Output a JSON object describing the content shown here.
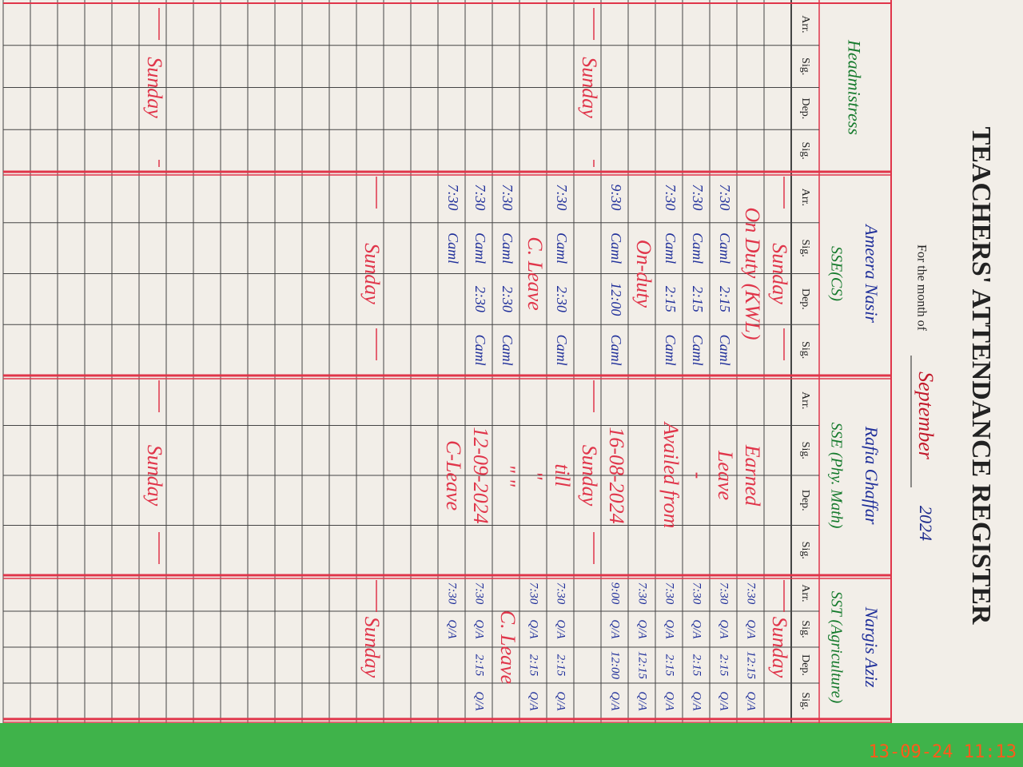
{
  "header": {
    "title": "TEACHERS' ATTENDANCE REGISTER",
    "month_label": "For the month of",
    "month": "September",
    "year": "2024"
  },
  "column_headers": [
    "Arr.",
    "Sig.",
    "Dep.",
    "Sig."
  ],
  "teachers": [
    {
      "name": "Headmistress"
    },
    {
      "name": "Ameera Nasir",
      "designation": "SSE(CS)"
    },
    {
      "name": "Rafia Ghaffar",
      "designation": "SSE (Phy. Math)"
    },
    {
      "name": "Nargis Aziz",
      "designation": "SST (Agriculture)"
    }
  ],
  "rows": [
    [
      null,
      "Sunday",
      null,
      "Sunday"
    ],
    [
      null,
      "On Duty (KWL)",
      "Earned",
      [
        "7:30",
        "Q/A",
        "12:15",
        "Q/A"
      ]
    ],
    [
      null,
      [
        "7:30",
        "Caml",
        "2:15",
        "Caml"
      ],
      "Leave",
      [
        "7:30",
        "Q/A",
        "2:15",
        "Q/A"
      ]
    ],
    [
      null,
      [
        "7:30",
        "Caml",
        "2:15",
        "Caml"
      ],
      "-",
      [
        "7:30",
        "Q/A",
        "2:15",
        "Q/A"
      ]
    ],
    [
      null,
      [
        "7:30",
        "Caml",
        "2:15",
        "Caml"
      ],
      "Availed from",
      [
        "7:30",
        "Q/A",
        "2:15",
        "Q/A"
      ]
    ],
    [
      null,
      "On-duty",
      null,
      [
        "7:30",
        "Q/A",
        "12:15",
        "Q/A"
      ]
    ],
    [
      null,
      [
        "9:30",
        "Caml",
        "12:00",
        "Caml"
      ],
      "16-08-2024",
      [
        "9:00",
        "Q/A",
        "12:00",
        "Q/A"
      ]
    ],
    [
      "Sunday",
      null,
      "Sunday",
      null
    ],
    [
      null,
      [
        "7:30",
        "Caml",
        "2:30",
        "Caml"
      ],
      "till",
      [
        "7:30",
        "Q/A",
        "2:15",
        "Q/A"
      ]
    ],
    [
      null,
      "C. Leave",
      "\"",
      [
        "7:30",
        "Q/A",
        "2:15",
        "Q/A"
      ]
    ],
    [
      null,
      [
        "7:30",
        "Caml",
        "2:30",
        "Caml"
      ],
      "\"  \"",
      "C. Leave"
    ],
    [
      null,
      [
        "7:30",
        "Caml",
        "2:30",
        "Caml"
      ],
      "12-09-2024",
      [
        "7:30",
        "Q/A",
        "2:15",
        "Q/A"
      ]
    ],
    [
      null,
      [
        "7:30",
        "Caml"
      ],
      "C-Leave",
      [
        "7:30",
        "Q/A"
      ]
    ],
    null,
    null,
    [
      null,
      "Sunday",
      null,
      "Sunday"
    ],
    null,
    null,
    null,
    null,
    null,
    null,
    null,
    [
      "Sunday",
      null,
      "Sunday",
      null
    ],
    null,
    null,
    null,
    null,
    null
  ],
  "timestamp": "13-09-24  11:13"
}
